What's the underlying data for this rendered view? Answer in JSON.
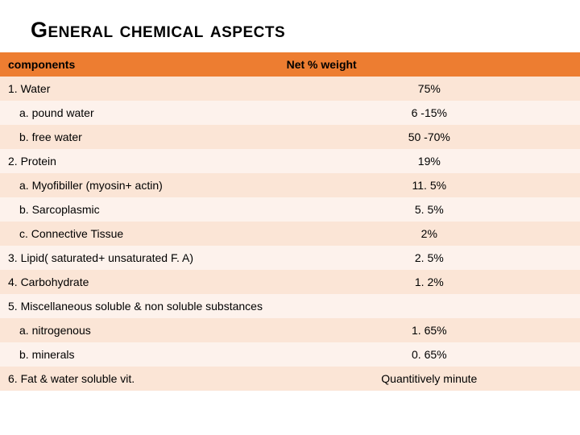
{
  "title": "General chemical aspects",
  "header": {
    "comp": "components",
    "val": "Net % weight"
  },
  "rows": [
    {
      "comp": "1. Water",
      "val": "75%",
      "indent": 0,
      "shade": "light"
    },
    {
      "comp": "a. pound water",
      "val": "6 -15%",
      "indent": 1,
      "shade": "lighter"
    },
    {
      "comp": "b. free water",
      "val": "50 -70%",
      "indent": 1,
      "shade": "light"
    },
    {
      "comp": "2. Protein",
      "val": "19%",
      "indent": 0,
      "shade": "lighter"
    },
    {
      "comp": "a. Myofibiller (myosin+ actin)",
      "val": "11. 5%",
      "indent": 1,
      "shade": "light"
    },
    {
      "comp": "b. Sarcoplasmic",
      "val": "5. 5%",
      "indent": 1,
      "shade": "lighter"
    },
    {
      "comp": "c. Connective Tissue",
      "val": "2%",
      "indent": 1,
      "shade": "light"
    },
    {
      "comp": "3. Lipid( saturated+ unsaturated F. A)",
      "val": "2. 5%",
      "indent": 0,
      "shade": "lighter"
    },
    {
      "comp": "4. Carbohydrate",
      "val": "1. 2%",
      "indent": 0,
      "shade": "light"
    },
    {
      "comp": "5. Miscellaneous soluble & non soluble substances",
      "val": "",
      "indent": 0,
      "shade": "lighter"
    },
    {
      "comp": "a. nitrogenous",
      "val": "1. 65%",
      "indent": 1,
      "shade": "light"
    },
    {
      "comp": "b. minerals",
      "val": "0. 65%",
      "indent": 1,
      "shade": "lighter"
    },
    {
      "comp": "6. Fat & water soluble vit.",
      "val": "Quantitively minute",
      "indent": 0,
      "shade": "light"
    }
  ],
  "colors": {
    "header_bg": "#ed7d31",
    "row_light": "#fbe5d6",
    "row_lighter": "#fdf2ec",
    "text": "#000000"
  },
  "fonts": {
    "title_size": 27,
    "row_size": 14
  }
}
